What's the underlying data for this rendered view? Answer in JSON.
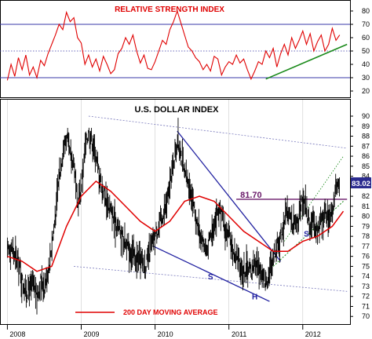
{
  "chart_data": [
    {
      "type": "line",
      "title": "RELATIVE STRENGTH INDEX",
      "ylim": [
        20,
        80
      ],
      "y_ticks": [
        20,
        30,
        40,
        50,
        60,
        70,
        80
      ],
      "reference_lines": [
        30,
        50,
        70
      ],
      "colors": {
        "line": "#e00000",
        "title": "#e00000",
        "bands": "#3a3aa8",
        "trendline": "#1a8a1a"
      },
      "x_years": [
        2008.0,
        2008.05,
        2008.1,
        2008.15,
        2008.2,
        2008.25,
        2008.3,
        2008.35,
        2008.4,
        2008.45,
        2008.5,
        2008.55,
        2008.6,
        2008.65,
        2008.7,
        2008.75,
        2008.8,
        2008.85,
        2008.9,
        2008.95,
        2009.0,
        2009.05,
        2009.1,
        2009.15,
        2009.2,
        2009.25,
        2009.3,
        2009.35,
        2009.4,
        2009.45,
        2009.5,
        2009.55,
        2009.6,
        2009.65,
        2009.7,
        2009.75,
        2009.8,
        2009.85,
        2009.9,
        2009.95,
        2010.0,
        2010.05,
        2010.1,
        2010.15,
        2010.2,
        2010.25,
        2010.3,
        2010.35,
        2010.4,
        2010.45,
        2010.5,
        2010.55,
        2010.6,
        2010.65,
        2010.7,
        2010.75,
        2010.8,
        2010.85,
        2010.9,
        2010.95,
        2011.0,
        2011.05,
        2011.1,
        2011.15,
        2011.2,
        2011.25,
        2011.3,
        2011.35,
        2011.4,
        2011.45,
        2011.5,
        2011.55,
        2011.6,
        2011.65,
        2011.7,
        2011.75,
        2011.8,
        2011.85,
        2011.9,
        2011.95,
        2012.0,
        2012.05,
        2012.1,
        2012.15,
        2012.2,
        2012.25,
        2012.3,
        2012.35,
        2012.4,
        2012.45,
        2012.5
      ],
      "values": [
        28,
        40,
        31,
        45,
        36,
        47,
        32,
        38,
        30,
        43,
        39,
        48,
        55,
        62,
        70,
        66,
        79,
        72,
        75,
        60,
        56,
        40,
        47,
        38,
        44,
        35,
        46,
        40,
        33,
        36,
        48,
        52,
        60,
        55,
        62,
        50,
        41,
        47,
        37,
        36,
        42,
        50,
        58,
        55,
        66,
        72,
        80,
        71,
        62,
        53,
        50,
        45,
        42,
        36,
        40,
        35,
        46,
        44,
        32,
        38,
        42,
        40,
        47,
        41,
        44,
        36,
        29,
        35,
        42,
        40,
        50,
        45,
        52,
        38,
        48,
        55,
        47,
        60,
        52,
        58,
        65,
        55,
        63,
        50,
        57,
        62,
        50,
        55,
        67,
        58,
        62
      ],
      "trendline": {
        "start": [
          2011.5,
          29
        ],
        "end": [
          2012.6,
          55
        ]
      }
    },
    {
      "type": "line",
      "title": "U.S. DOLLAR INDEX",
      "ylim": [
        69,
        90
      ],
      "y_ticks": [
        70,
        71,
        72,
        73,
        74,
        75,
        76,
        77,
        78,
        79,
        80,
        81,
        82,
        83,
        84,
        85,
        86,
        87,
        88,
        89,
        90
      ],
      "x_ticks": [
        "2008",
        "2009",
        "2010",
        "2011",
        "2012"
      ],
      "x_tick_positions": [
        2008.0,
        2009.0,
        2010.0,
        2011.0,
        2012.0
      ],
      "last_value": "83.02",
      "colors": {
        "bars": "#000000",
        "moving_average": "#e00000",
        "last_value_box": "#2b2b8f",
        "channel": "#7777bb",
        "wedge": "#2020a0",
        "level": "#6a1a6a",
        "support": "#1a8a1a"
      },
      "price_path": {
        "x": [
          2008.0,
          2008.05,
          2008.1,
          2008.15,
          2008.2,
          2008.25,
          2008.3,
          2008.35,
          2008.4,
          2008.45,
          2008.5,
          2008.55,
          2008.6,
          2008.65,
          2008.7,
          2008.75,
          2008.8,
          2008.85,
          2008.9,
          2008.95,
          2009.0,
          2009.05,
          2009.1,
          2009.15,
          2009.2,
          2009.25,
          2009.3,
          2009.35,
          2009.4,
          2009.45,
          2009.5,
          2009.55,
          2009.6,
          2009.65,
          2009.7,
          2009.75,
          2009.8,
          2009.85,
          2009.9,
          2009.95,
          2010.0,
          2010.05,
          2010.1,
          2010.15,
          2010.2,
          2010.25,
          2010.3,
          2010.35,
          2010.4,
          2010.45,
          2010.5,
          2010.55,
          2010.6,
          2010.65,
          2010.7,
          2010.75,
          2010.8,
          2010.85,
          2010.9,
          2010.95,
          2011.0,
          2011.05,
          2011.1,
          2011.15,
          2011.2,
          2011.25,
          2011.3,
          2011.35,
          2011.4,
          2011.45,
          2011.5,
          2011.55,
          2011.6,
          2011.65,
          2011.7,
          2011.75,
          2011.8,
          2011.85,
          2011.9,
          2011.95,
          2012.0,
          2012.05,
          2012.1,
          2012.15,
          2012.2,
          2012.25,
          2012.3,
          2012.35,
          2012.4,
          2012.45,
          2012.5
        ],
        "y": [
          76.5,
          77.0,
          76.0,
          75.5,
          73.5,
          72.5,
          72.8,
          73.2,
          72.0,
          73.5,
          73.0,
          74.5,
          77.0,
          80.0,
          84.0,
          86.5,
          88.0,
          86.0,
          85.5,
          81.0,
          83.0,
          86.5,
          88.5,
          87.5,
          86.0,
          84.0,
          82.5,
          81.5,
          80.5,
          79.5,
          79.0,
          78.0,
          77.5,
          76.5,
          76.5,
          75.5,
          76.0,
          75.0,
          75.5,
          77.0,
          78.0,
          79.0,
          80.0,
          81.0,
          83.0,
          85.5,
          87.5,
          86.5,
          84.0,
          83.5,
          82.0,
          80.0,
          78.5,
          77.5,
          76.5,
          78.0,
          79.5,
          80.5,
          80.0,
          78.5,
          78.0,
          76.5,
          76.0,
          75.0,
          74.5,
          75.0,
          74.5,
          75.5,
          75.0,
          74.0,
          73.5,
          74.5,
          76.0,
          77.0,
          78.0,
          79.5,
          80.5,
          79.5,
          79.0,
          80.0,
          81.5,
          80.5,
          79.0,
          79.5,
          78.5,
          79.5,
          80.5,
          80.0,
          81.0,
          82.5,
          83.0
        ]
      },
      "moving_average": {
        "name": "200 DAY MOVING AVERAGE",
        "x": [
          2008.0,
          2008.2,
          2008.4,
          2008.6,
          2008.8,
          2009.0,
          2009.2,
          2009.4,
          2009.6,
          2009.8,
          2010.0,
          2010.2,
          2010.4,
          2010.6,
          2010.8,
          2011.0,
          2011.2,
          2011.4,
          2011.6,
          2011.8,
          2012.0,
          2012.2,
          2012.4,
          2012.55
        ],
        "y": [
          76.0,
          75.5,
          74.5,
          75.0,
          79.0,
          82.0,
          83.5,
          82.5,
          81.0,
          79.5,
          78.5,
          79.5,
          81.5,
          82.0,
          81.5,
          80.0,
          78.5,
          77.5,
          76.5,
          76.5,
          77.5,
          78.0,
          79.0,
          80.5
        ]
      },
      "annotations": [
        {
          "text": "81.70",
          "x": 2011.3,
          "y": 81.7
        },
        {
          "text": "S",
          "x": 2010.75,
          "y": 74.0
        },
        {
          "text": "H",
          "x": 2011.35,
          "y": 72.0
        },
        {
          "text": "S",
          "x": 2012.05,
          "y": 78.3
        }
      ],
      "lines": [
        {
          "role": "channel-top",
          "start": [
            2009.1,
            90.0
          ],
          "end": [
            2012.6,
            86.8
          ]
        },
        {
          "role": "channel-bottom",
          "start": [
            2008.9,
            75.0
          ],
          "end": [
            2012.6,
            72.5
          ]
        },
        {
          "role": "wedge-upper",
          "start": [
            2010.3,
            88.5
          ],
          "end": [
            2011.7,
            75.5
          ]
        },
        {
          "role": "wedge-lower",
          "start": [
            2009.98,
            77.0
          ],
          "end": [
            2011.55,
            71.5
          ]
        },
        {
          "role": "neckline",
          "start": [
            2011.1,
            81.7
          ],
          "end": [
            2012.6,
            81.7
          ]
        },
        {
          "role": "support",
          "start": [
            2011.6,
            75.0
          ],
          "end": [
            2012.55,
            81.5
          ]
        },
        {
          "role": "breakout-extension",
          "start": [
            2011.75,
            77.5
          ],
          "end": [
            2012.55,
            86.0
          ]
        }
      ]
    }
  ]
}
